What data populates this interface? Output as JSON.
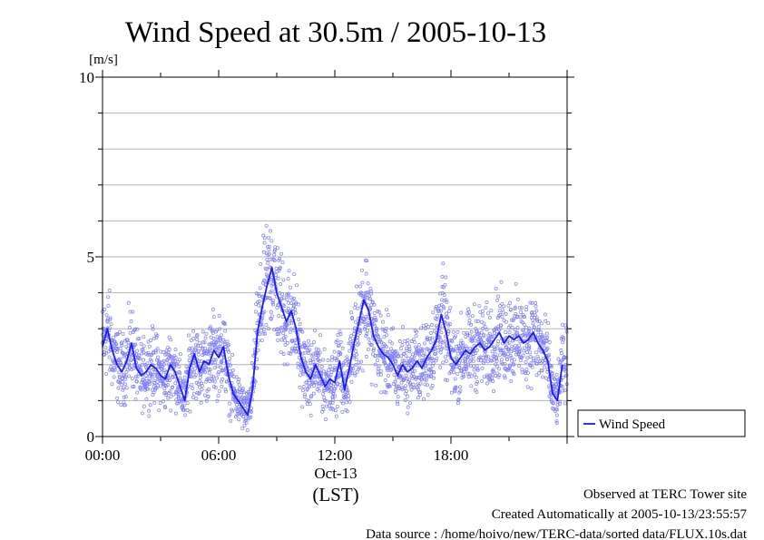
{
  "chart_data": {
    "type": "line",
    "title": "Wind Speed at 30.5m / 2005-10-13",
    "ylabel": "[m/s]",
    "ylim": [
      0,
      10
    ],
    "xlim_hours": [
      0,
      24
    ],
    "y_ticks": [
      "0",
      "5",
      "10"
    ],
    "x_ticks": [
      "00:00",
      "06:00",
      "12:00",
      "18:00"
    ],
    "x_date_label": "Oct-13",
    "x_tz_label": "(LST)",
    "grid": true,
    "legend_placement": "right",
    "series": [
      {
        "name": "Wind Speed",
        "color": "#1a1aff",
        "scatter_color": "#7d7dff",
        "x_hours": [
          0.0,
          0.25,
          0.5,
          0.75,
          1.0,
          1.25,
          1.5,
          1.75,
          2.0,
          2.25,
          2.5,
          2.75,
          3.0,
          3.25,
          3.5,
          3.75,
          4.0,
          4.25,
          4.5,
          4.75,
          5.0,
          5.25,
          5.5,
          5.75,
          6.0,
          6.25,
          6.5,
          6.75,
          7.0,
          7.25,
          7.5,
          7.75,
          8.0,
          8.25,
          8.5,
          8.75,
          9.0,
          9.25,
          9.5,
          9.75,
          10.0,
          10.25,
          10.5,
          10.75,
          11.0,
          11.25,
          11.5,
          11.75,
          12.0,
          12.25,
          12.5,
          12.75,
          13.0,
          13.25,
          13.5,
          13.75,
          14.0,
          14.25,
          14.5,
          14.75,
          15.0,
          15.25,
          15.5,
          15.75,
          16.0,
          16.25,
          16.5,
          16.75,
          17.0,
          17.25,
          17.5,
          17.75,
          18.0,
          18.25,
          18.5,
          18.75,
          19.0,
          19.25,
          19.5,
          19.75,
          20.0,
          20.25,
          20.5,
          20.75,
          21.0,
          21.25,
          21.5,
          21.75,
          22.0,
          22.25,
          22.5,
          22.75,
          23.0,
          23.25,
          23.5,
          23.75
        ],
        "values": [
          2.5,
          3.0,
          2.4,
          2.0,
          1.8,
          2.1,
          2.6,
          1.9,
          1.7,
          1.8,
          2.0,
          1.9,
          1.7,
          1.6,
          2.0,
          1.8,
          1.4,
          1.0,
          1.9,
          2.3,
          1.8,
          2.1,
          2.0,
          2.4,
          2.2,
          2.5,
          1.7,
          1.2,
          1.0,
          0.8,
          0.6,
          1.3,
          2.9,
          3.6,
          4.2,
          4.7,
          4.0,
          3.6,
          3.2,
          3.5,
          3.0,
          2.2,
          1.8,
          1.6,
          2.0,
          1.7,
          1.4,
          1.6,
          1.5,
          2.1,
          1.3,
          1.9,
          2.6,
          3.2,
          3.8,
          3.5,
          2.8,
          2.5,
          2.3,
          2.2,
          2.0,
          1.7,
          2.0,
          1.8,
          1.9,
          2.1,
          1.9,
          2.2,
          2.4,
          2.7,
          3.4,
          2.9,
          2.2,
          2.0,
          2.2,
          2.4,
          2.3,
          2.5,
          2.6,
          2.4,
          2.5,
          2.7,
          2.9,
          2.6,
          2.8,
          2.7,
          2.8,
          2.6,
          2.7,
          2.9,
          2.6,
          2.4,
          2.1,
          1.2,
          1.0,
          2.0
        ]
      }
    ]
  },
  "footer": {
    "line1": "Observed at TERC Tower site",
    "line2": "Created Automatically at 2005-10-13/23:55:57",
    "line3": "Data source : /home/hoivo/new/TERC-data/sorted  data/FLUX.10s.dat"
  }
}
